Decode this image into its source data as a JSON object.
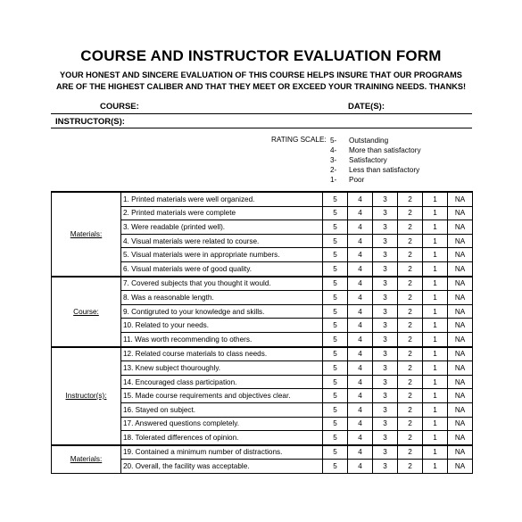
{
  "title": "COURSE AND INSTRUCTOR EVALUATION FORM",
  "subtitle_lines": [
    "YOUR HONEST AND SINCERE EVALUATION OF THIS COURSE HELPS INSURE THAT OUR PROGRAMS",
    "ARE OF THE HIGHEST CALIBER AND THAT THEY MEET OR EXCEED YOUR TRAINING NEEDS. THANKS!"
  ],
  "fields": {
    "course": "COURSE:",
    "dates": "DATE(S):",
    "instructors": "INSTRUCTOR(S):"
  },
  "rating_scale": {
    "label": "RATING SCALE:",
    "items": [
      {
        "num": "5-",
        "text": "Outstanding"
      },
      {
        "num": "4-",
        "text": "More than satisfactory"
      },
      {
        "num": "3-",
        "text": "Satisfactory"
      },
      {
        "num": "2-",
        "text": "Less than satisfactory"
      },
      {
        "num": "1-",
        "text": "Poor"
      }
    ]
  },
  "rating_options": [
    "5",
    "4",
    "3",
    "2",
    "1",
    "NA"
  ],
  "sections": [
    {
      "label": "Materials:",
      "questions": [
        "1. Printed materials were well organized.",
        "2. Printed materials were complete",
        "3. Were readable (printed well).",
        "4. Visual materials were related to course.",
        "5. Visual materials were in appropriate numbers.",
        "6. Visual materials were of good quality."
      ]
    },
    {
      "label": "Course:",
      "questions": [
        "7. Covered subjects that you thought it would.",
        "8. Was a reasonable length.",
        "9. Contigruted to your knowledge and skills.",
        "10. Related to your needs.",
        "11. Was worth recommending to others."
      ]
    },
    {
      "label": "Instructor(s):",
      "questions": [
        "12. Related course materials to class needs.",
        "13. Knew subject thouroughly.",
        "14. Encouraged class participation.",
        "15. Made course requirements and objectives clear.",
        "16. Stayed on subject.",
        "17. Answered questions completely.",
        "18. Tolerated differences of opinion."
      ]
    },
    {
      "label": "Materials:",
      "questions": [
        "19. Contained a minimum number of distractions.",
        "20. Overall, the facility was acceptable."
      ]
    }
  ]
}
